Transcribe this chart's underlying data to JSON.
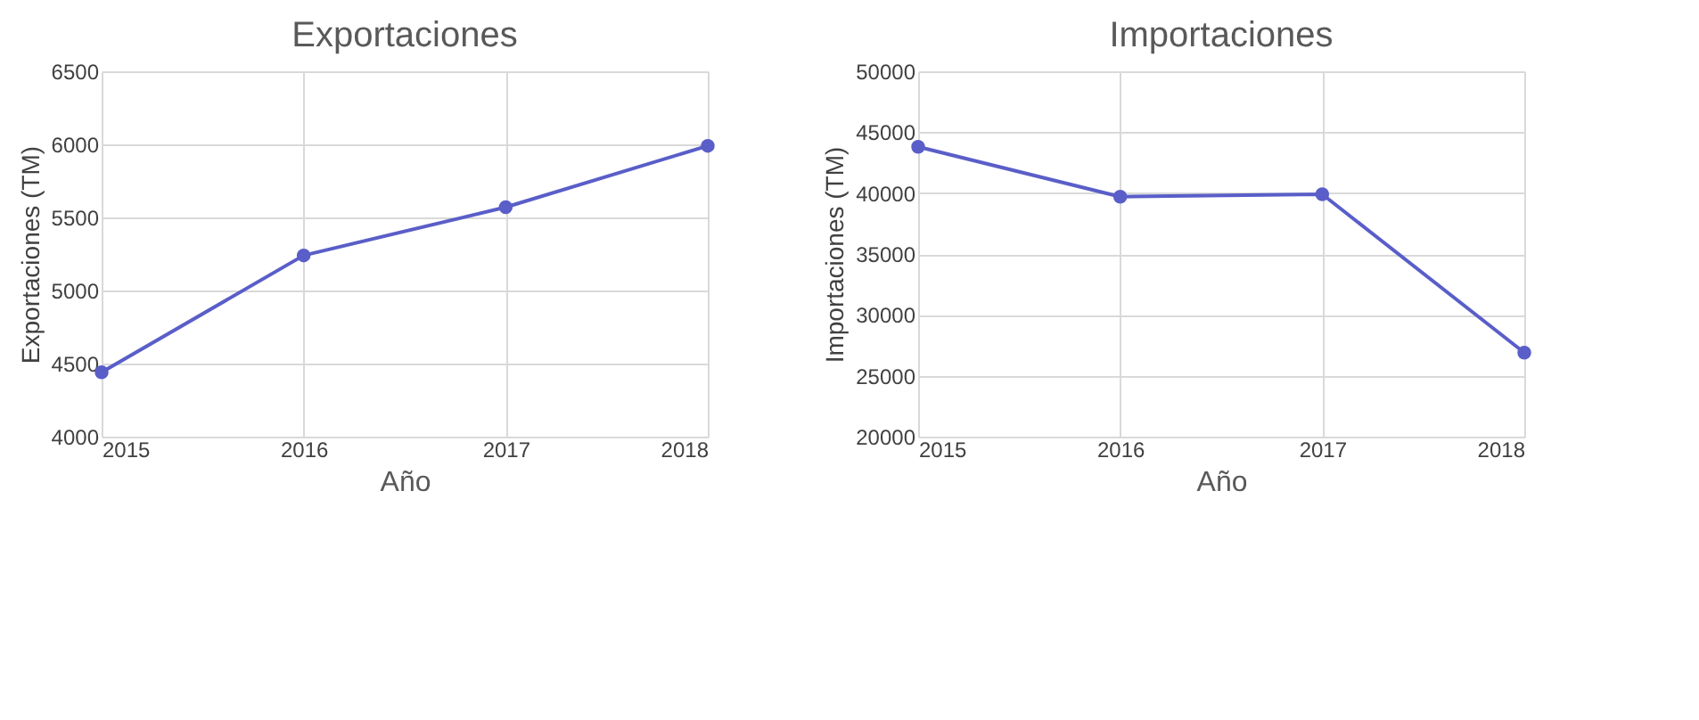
{
  "chart_data": [
    {
      "type": "line",
      "title": "Exportaciones",
      "xlabel": "Año",
      "ylabel": "Exportaciones (TM)",
      "x": [
        2015,
        2016,
        2017,
        2018
      ],
      "xlim": [
        2015,
        2018
      ],
      "xticks": [
        2015,
        2016,
        2017,
        2018
      ],
      "ylim": [
        4000,
        6500
      ],
      "yticks": [
        4000,
        4500,
        5000,
        5500,
        6000,
        6500
      ],
      "grid": true,
      "marker": "circle",
      "line_style": "solid",
      "series": [
        {
          "color": "#5a5ec8",
          "values": [
            4440,
            5240,
            5570,
            5990
          ]
        }
      ]
    },
    {
      "type": "line",
      "title": "Importaciones",
      "xlabel": "Año",
      "ylabel": "Importaciones (TM)",
      "x": [
        2015,
        2016,
        2017,
        2018
      ],
      "xlim": [
        2015,
        2018
      ],
      "xticks": [
        2015,
        2016,
        2017,
        2018
      ],
      "ylim": [
        20000,
        50000
      ],
      "yticks": [
        20000,
        25000,
        30000,
        35000,
        40000,
        45000,
        50000
      ],
      "grid": true,
      "marker": "circle",
      "line_style": "solid",
      "series": [
        {
          "color": "#5a5ec8",
          "values": [
            43800,
            39700,
            39900,
            26900
          ]
        }
      ]
    }
  ]
}
